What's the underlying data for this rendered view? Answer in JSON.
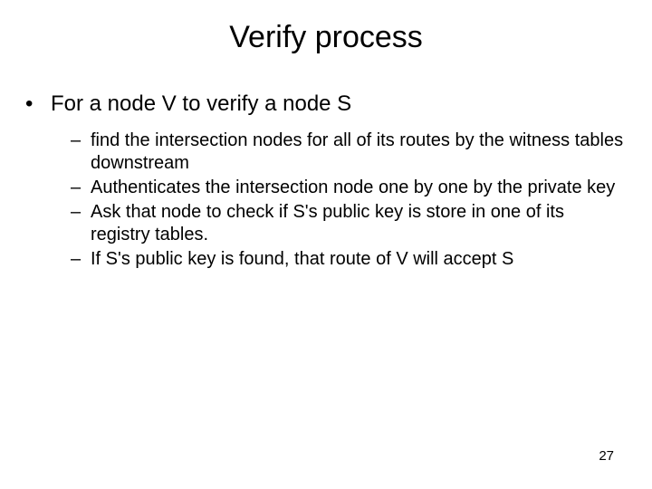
{
  "title": "Verify process",
  "bullet_level1": "•",
  "bullet_level2": "–",
  "level1_item": "For a node V to verify a node S",
  "sub_items": [
    "find the intersection nodes for all of its routes by the witness tables downstream",
    "Authenticates the intersection node one by one by the private key",
    "Ask that node to check if S's public key is store in one of its registry tables.",
    "If S's public key is found, that route of V will accept S"
  ],
  "page_number": "27"
}
